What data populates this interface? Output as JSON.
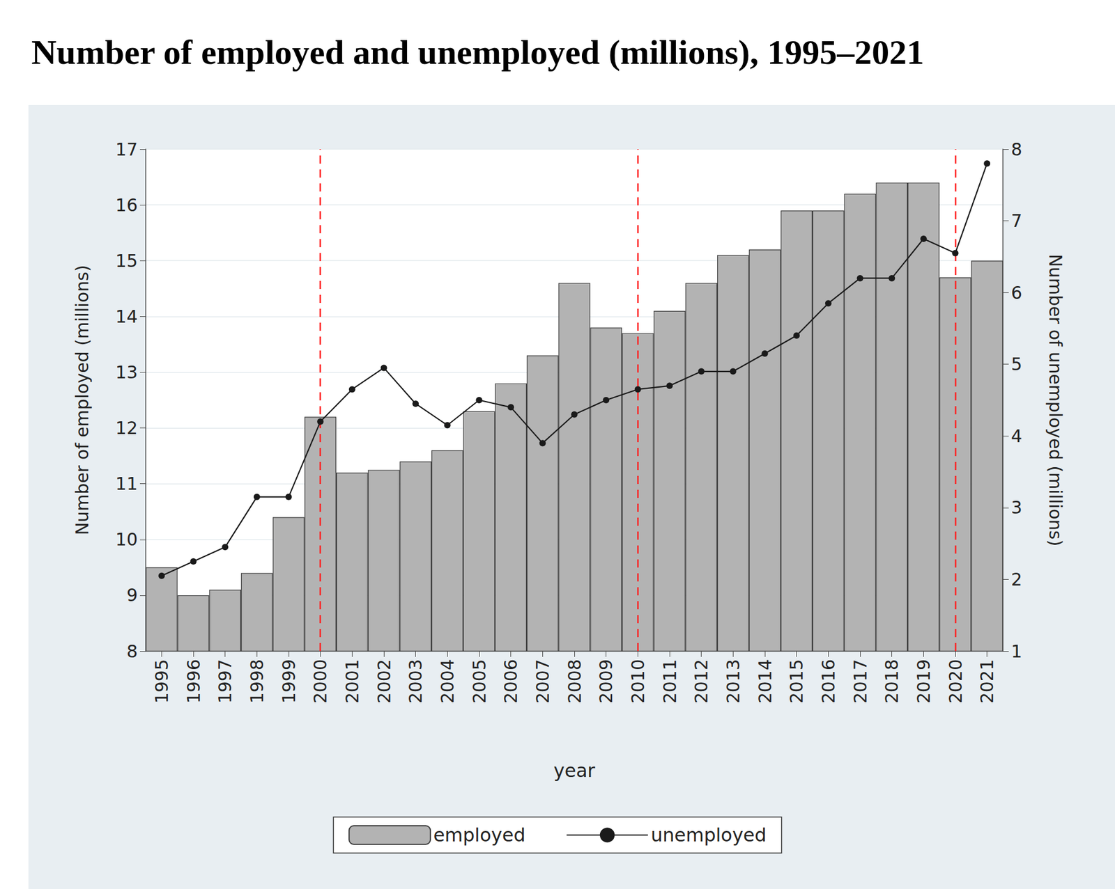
{
  "chart_data": {
    "type": "bar",
    "title": "Number of employed and unemployed (millions), 1995–2021",
    "x_label": "year",
    "y_label": "Number of employed (millions)",
    "y2_label": "Number of unemployed (millions)",
    "categories": [
      "1995",
      "1996",
      "1997",
      "1998",
      "1999",
      "2000",
      "2001",
      "2002",
      "2003",
      "2004",
      "2005",
      "2006",
      "2007",
      "2008",
      "2009",
      "2010",
      "2011",
      "2012",
      "2013",
      "2014",
      "2015",
      "2016",
      "2017",
      "2018",
      "2019",
      "2020",
      "2021"
    ],
    "series": [
      {
        "name": "employed",
        "type": "bar",
        "color": "#b3b3b3",
        "values": [
          9.5,
          9.0,
          9.1,
          9.4,
          10.4,
          12.2,
          11.2,
          11.25,
          11.4,
          11.6,
          12.3,
          12.8,
          13.3,
          14.6,
          13.8,
          13.7,
          14.1,
          14.6,
          15.1,
          15.2,
          15.9,
          15.9,
          16.2,
          16.4,
          16.4,
          14.7,
          15.0
        ]
      },
      {
        "name": "unemployed",
        "type": "line",
        "axis": "y2",
        "color": "#1a1a1a",
        "marker": "circle",
        "line_style": "solid",
        "values": [
          2.05,
          2.25,
          2.45,
          3.15,
          3.15,
          4.2,
          4.65,
          4.95,
          4.45,
          4.15,
          4.5,
          4.4,
          3.9,
          4.3,
          4.5,
          4.65,
          4.7,
          4.9,
          4.9,
          5.15,
          5.4,
          5.85,
          6.2,
          6.2,
          6.75,
          6.55,
          7.8
        ]
      }
    ],
    "vlines": [
      "2000",
      "2010",
      "2020"
    ],
    "ylim": [
      8,
      17
    ],
    "yticks": [
      8,
      9,
      10,
      11,
      12,
      13,
      14,
      15,
      16,
      17
    ],
    "y2lim": [
      1,
      8
    ],
    "y2ticks": [
      1,
      2,
      3,
      4,
      5,
      6,
      7,
      8
    ],
    "grid": true,
    "legend": "bottom"
  }
}
